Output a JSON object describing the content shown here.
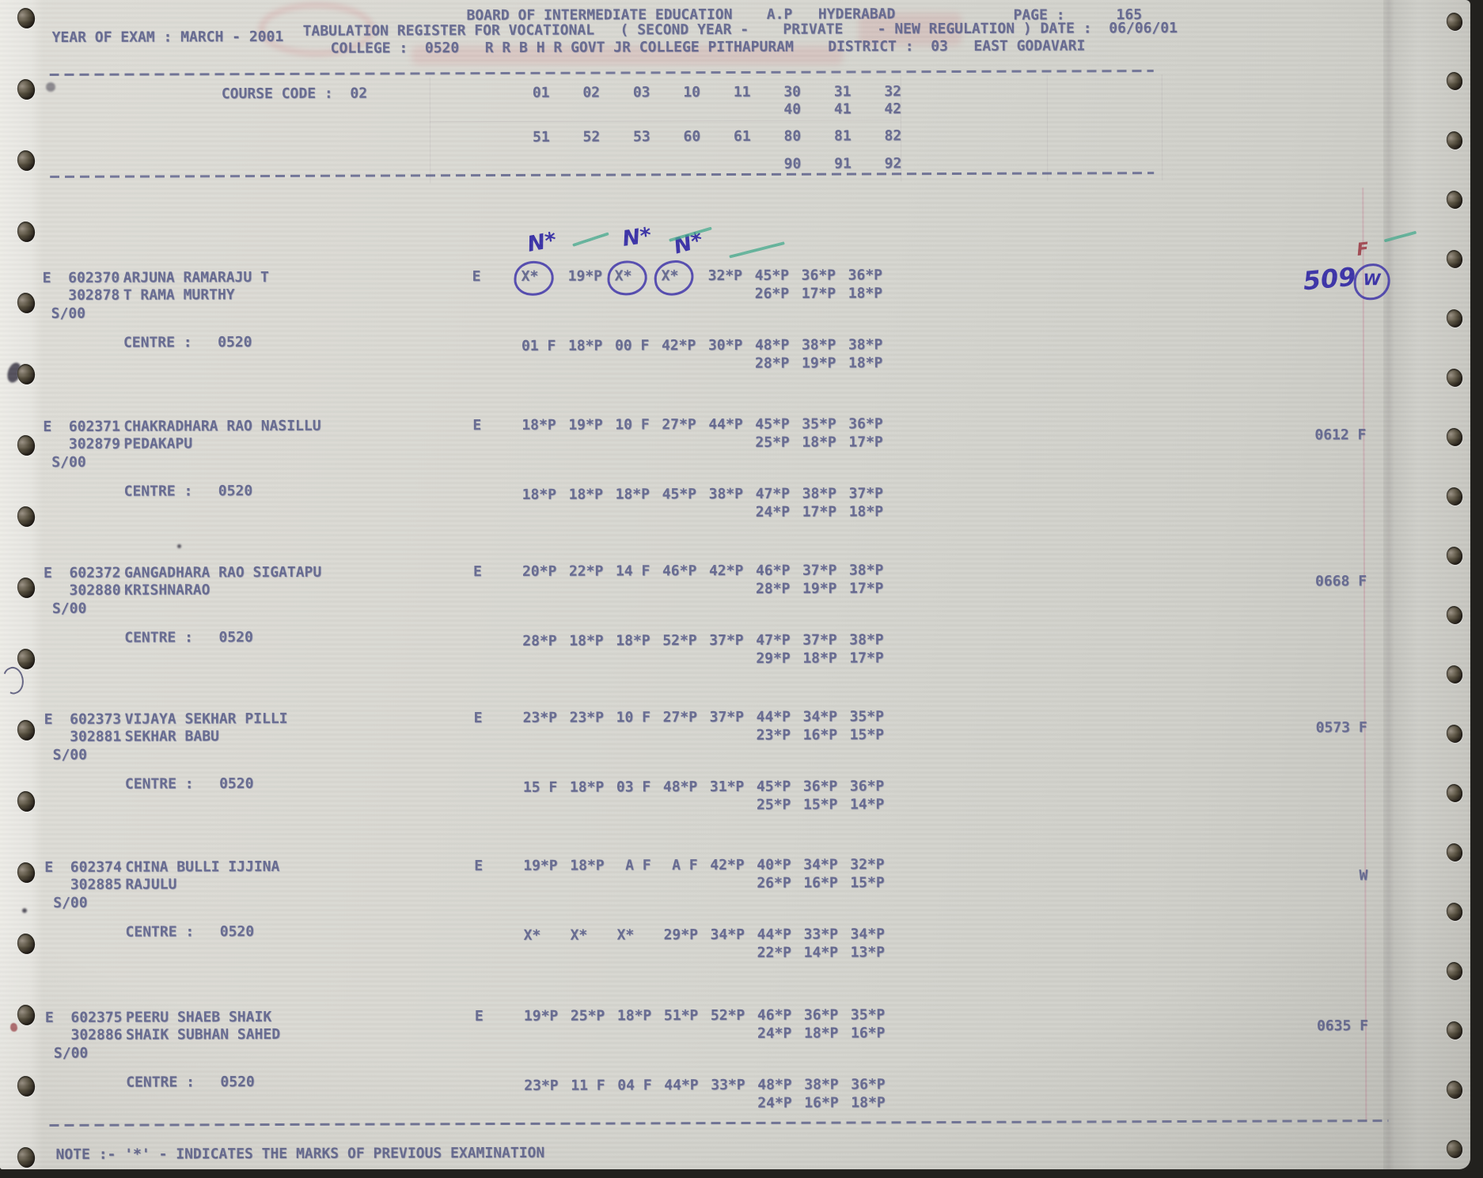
{
  "document": {
    "title_line": "BOARD OF INTERMEDIATE EDUCATION    A.P   HYDERABAD",
    "page_line": "PAGE :      165",
    "year_line": "YEAR OF EXAM : MARCH - 2001",
    "register_line": "TABULATION REGISTER FOR VOCATIONAL   ( SECOND YEAR -    PRIVATE    - NEW REGULATION ) DATE :  06/06/01",
    "college_line": "COLLEGE :  0520   R R B H R GOVT JR COLLEGE PITHAPURAM    DISTRICT :  03   EAST GODAVARI",
    "note_line": "NOTE :- '*' - INDICATES THE MARKS OF PREVIOUS EXAMINATION"
  },
  "course_header": {
    "label": "COURSE CODE :  02",
    "rows": [
      [
        "01",
        "02",
        "03",
        "10",
        "11",
        "30",
        "31",
        "32"
      ],
      [
        "",
        "",
        "",
        "",
        "",
        "40",
        "41",
        "42"
      ],
      [
        "51",
        "52",
        "53",
        "60",
        "61",
        "80",
        "81",
        "82"
      ],
      [
        "",
        "",
        "",
        "",
        "",
        "90",
        "91",
        "92"
      ]
    ]
  },
  "records": [
    {
      "reg1": "E  602370",
      "reg2": "   302878",
      "reg3": " S/00",
      "name1": "ARJUNA RAMARAJU T",
      "name2": "T RAMA MURTHY",
      "medium": "E",
      "marks1": [
        "X*",
        "19*P",
        "X*",
        "X*",
        "32*P",
        "45*P",
        "36*P",
        "36*P"
      ],
      "marks2": [
        "",
        "",
        "",
        "",
        "",
        "26*P",
        "17*P",
        "18*P"
      ],
      "centre": "CENTRE :   0520",
      "cmarks1": [
        "01 F",
        "18*P",
        "00 F",
        "42*P",
        "30*P",
        "48*P",
        "38*P",
        "38*P"
      ],
      "cmarks2": [
        "",
        "",
        "",
        "",
        "",
        "28*P",
        "19*P",
        "18*P"
      ],
      "result": "",
      "circled": [
        0,
        2,
        3
      ]
    },
    {
      "reg1": "E  602371",
      "reg2": "   302879",
      "reg3": " S/00",
      "name1": "CHAKRADHARA RAO NASILLU",
      "name2": "PEDAKAPU",
      "medium": "E",
      "marks1": [
        "18*P",
        "19*P",
        "10 F",
        "27*P",
        "44*P",
        "45*P",
        "35*P",
        "36*P"
      ],
      "marks2": [
        "",
        "",
        "",
        "",
        "",
        "25*P",
        "18*P",
        "17*P"
      ],
      "centre": "CENTRE :   0520",
      "cmarks1": [
        "18*P",
        "18*P",
        "18*P",
        "45*P",
        "38*P",
        "47*P",
        "38*P",
        "37*P"
      ],
      "cmarks2": [
        "",
        "",
        "",
        "",
        "",
        "24*P",
        "17*P",
        "18*P"
      ],
      "result": "0612 F",
      "circled": []
    },
    {
      "reg1": "E  602372",
      "reg2": "   302880",
      "reg3": " S/00",
      "name1": "GANGADHARA RAO SIGATAPU",
      "name2": "KRISHNARAO",
      "medium": "E",
      "marks1": [
        "20*P",
        "22*P",
        "14 F",
        "46*P",
        "42*P",
        "46*P",
        "37*P",
        "38*P"
      ],
      "marks2": [
        "",
        "",
        "",
        "",
        "",
        "28*P",
        "19*P",
        "17*P"
      ],
      "centre": "CENTRE :   0520",
      "cmarks1": [
        "28*P",
        "18*P",
        "18*P",
        "52*P",
        "37*P",
        "47*P",
        "37*P",
        "38*P"
      ],
      "cmarks2": [
        "",
        "",
        "",
        "",
        "",
        "29*P",
        "18*P",
        "17*P"
      ],
      "result": "0668 F",
      "circled": []
    },
    {
      "reg1": "E  602373",
      "reg2": "   302881",
      "reg3": " S/00",
      "name1": "VIJAYA SEKHAR PILLI",
      "name2": "SEKHAR BABU",
      "medium": "E",
      "marks1": [
        "23*P",
        "23*P",
        "10 F",
        "27*P",
        "37*P",
        "44*P",
        "34*P",
        "35*P"
      ],
      "marks2": [
        "",
        "",
        "",
        "",
        "",
        "23*P",
        "16*P",
        "15*P"
      ],
      "centre": "CENTRE :   0520",
      "cmarks1": [
        "15 F",
        "18*P",
        "03 F",
        "48*P",
        "31*P",
        "45*P",
        "36*P",
        "36*P"
      ],
      "cmarks2": [
        "",
        "",
        "",
        "",
        "",
        "25*P",
        "15*P",
        "14*P"
      ],
      "result": "0573 F",
      "circled": []
    },
    {
      "reg1": "E  602374",
      "reg2": "   302885",
      "reg3": " S/00",
      "name1": "CHINA BULLI IJJINA",
      "name2": "RAJULU",
      "medium": "E",
      "marks1": [
        "19*P",
        "18*P",
        " A F",
        " A F",
        "42*P",
        "40*P",
        "34*P",
        "32*P"
      ],
      "marks2": [
        "",
        "",
        "",
        "",
        "",
        "26*P",
        "16*P",
        "15*P"
      ],
      "centre": "CENTRE :   0520",
      "cmarks1": [
        "X*",
        "X*",
        "X*",
        "29*P",
        "34*P",
        "44*P",
        "33*P",
        "34*P"
      ],
      "cmarks2": [
        "",
        "",
        "",
        "",
        "",
        "22*P",
        "14*P",
        "13*P"
      ],
      "result": "     W",
      "circled": []
    },
    {
      "reg1": "E  602375",
      "reg2": "   302886",
      "reg3": " S/00",
      "name1": "PEERU SHAEB SHAIK",
      "name2": "SHAIK SUBHAN SAHED",
      "medium": "E",
      "marks1": [
        "19*P",
        "25*P",
        "18*P",
        "51*P",
        "52*P",
        "46*P",
        "36*P",
        "35*P"
      ],
      "marks2": [
        "",
        "",
        "",
        "",
        "",
        "24*P",
        "18*P",
        "16*P"
      ],
      "centre": "CENTRE :   0520",
      "cmarks1": [
        "23*P",
        "11 F",
        "04 F",
        "44*P",
        "33*P",
        "48*P",
        "38*P",
        "36*P"
      ],
      "cmarks2": [
        "",
        "",
        "",
        "",
        "",
        "24*P",
        "16*P",
        "18*P"
      ],
      "result": "0635 F",
      "circled": []
    }
  ],
  "annotations": {
    "n_label": "N*",
    "total": "509",
    "grade": "W",
    "flag": "F"
  },
  "colors": {
    "print": "#60648e",
    "ink": "#3d35a8",
    "tick": "#43a98c",
    "flag_red": "#a24c55"
  }
}
